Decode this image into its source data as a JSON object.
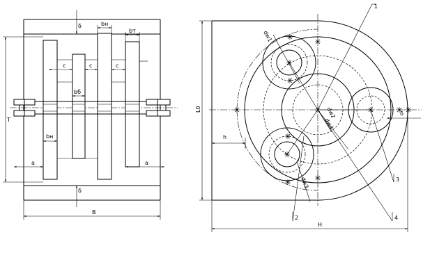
{
  "left_view": {
    "labels": {
      "bn_top": "bн",
      "bt": "bт",
      "c1": "c",
      "c2": "c",
      "c3": "c",
      "bb": "bб",
      "bn_mid": "bн",
      "a_left": "a",
      "a_right": "a",
      "delta_top": "δ",
      "delta_bottom": "δ",
      "T": "T",
      "B": "B"
    }
  },
  "right_view": {
    "labels": {
      "L0": "L0",
      "h": "h",
      "H": "H",
      "delta": "δ",
      "dw1": "dw1",
      "dw2": "dw2",
      "dw3": "dw3",
      "dw4": "dw4",
      "n1": "1",
      "n2": "2",
      "n3": "3",
      "n4": "4"
    }
  },
  "colors": {
    "line": "#000000",
    "background": "#ffffff"
  }
}
